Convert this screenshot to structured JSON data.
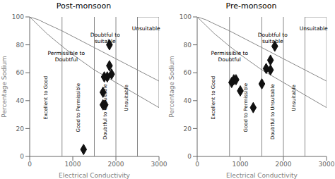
{
  "chart_data": [
    {
      "type": "scatter",
      "title": "Post-monsoon",
      "x_label": "Electrical Conductivity",
      "y_label": "Percentage Sodium",
      "xlim": [
        0,
        3000
      ],
      "ylim": [
        0,
        100
      ],
      "xticks": [
        0,
        1000,
        2000,
        3000
      ],
      "yticks": [
        0,
        20,
        40,
        60,
        80,
        100
      ],
      "grid": false,
      "color": "#111111",
      "marker": "diamond",
      "points": [
        [
          1250,
          5
        ],
        [
          1700,
          37
        ],
        [
          1750,
          37
        ],
        [
          1700,
          46
        ],
        [
          1730,
          57
        ],
        [
          1800,
          57
        ],
        [
          1850,
          65
        ],
        [
          1900,
          59
        ],
        [
          1850,
          80
        ]
      ],
      "lines": [
        {
          "color": "#888888",
          "x": [
            750,
            750
          ],
          "y": [
            0,
            100
          ]
        },
        {
          "color": "#888888",
          "x": [
            1500,
            1500
          ],
          "y": [
            0,
            100
          ]
        },
        {
          "color": "#888888",
          "x": [
            2000,
            2000
          ],
          "y": [
            0,
            100
          ]
        },
        {
          "color": "#888888",
          "x": [
            2500,
            2500
          ],
          "y": [
            0,
            100
          ]
        },
        {
          "color": "#888888",
          "x": [
            0,
            100,
            200,
            400,
            750,
            1000,
            1500,
            2000,
            2500,
            3000
          ],
          "y": [
            100,
            97,
            94,
            88,
            79,
            73,
            62,
            53,
            44,
            35
          ]
        },
        {
          "color": "#888888",
          "x": [
            0,
            100,
            200,
            400,
            750,
            1000,
            1500,
            2000,
            2500,
            3000
          ],
          "y": [
            100,
            99,
            98,
            95,
            90,
            86,
            78,
            70,
            62,
            54
          ]
        },
        {
          "color": "#888888",
          "x": [
            2500,
            3000
          ],
          "y": [
            100,
            100
          ]
        },
        {
          "color": "#888888",
          "x": [
            2500,
            2500
          ],
          "y": [
            44,
            100
          ]
        },
        {
          "color": "#888888",
          "x": [
            3000,
            3000
          ],
          "y": [
            35,
            100
          ]
        }
      ],
      "annotations": [
        {
          "text": "Unsuitable",
          "x": 2700,
          "y": 92
        },
        {
          "text": "Doubtful to\nsuitable",
          "x": 1750,
          "y": 85
        },
        {
          "text": "Permissible to\nDoubtful",
          "x": 850,
          "y": 72
        }
      ],
      "rotated_annotations": [
        {
          "text": "Excellent to Good",
          "x": 375,
          "y": 42
        },
        {
          "text": "Good to Permissible",
          "x": 1130,
          "y": 35
        },
        {
          "text": "Doubtful to Unsuitable",
          "x": 1750,
          "y": 32
        },
        {
          "text": "Unsuitable",
          "x": 2250,
          "y": 42
        }
      ]
    },
    {
      "type": "scatter",
      "title": "Pre-monsoon",
      "x_label": "Electrical Conductivity",
      "y_label": "Percentage Sodium",
      "xlim": [
        0,
        3000
      ],
      "ylim": [
        0,
        100
      ],
      "xticks": [
        0,
        1000,
        2000,
        3000
      ],
      "yticks": [
        0,
        20,
        40,
        60,
        80,
        100
      ],
      "grid": false,
      "color": "#111111",
      "marker": "diamond",
      "points": [
        [
          800,
          53
        ],
        [
          850,
          55
        ],
        [
          900,
          55
        ],
        [
          1000,
          47
        ],
        [
          1300,
          35
        ],
        [
          1500,
          52
        ],
        [
          1600,
          63
        ],
        [
          1700,
          62
        ],
        [
          1700,
          69
        ],
        [
          1800,
          79
        ]
      ],
      "lines": [
        {
          "color": "#888888",
          "x": [
            750,
            750
          ],
          "y": [
            0,
            100
          ]
        },
        {
          "color": "#888888",
          "x": [
            1500,
            1500
          ],
          "y": [
            0,
            100
          ]
        },
        {
          "color": "#888888",
          "x": [
            2000,
            2000
          ],
          "y": [
            0,
            100
          ]
        },
        {
          "color": "#888888",
          "x": [
            2500,
            2500
          ],
          "y": [
            0,
            100
          ]
        },
        {
          "color": "#888888",
          "x": [
            0,
            100,
            200,
            400,
            750,
            1000,
            1500,
            2000,
            2500,
            3000
          ],
          "y": [
            100,
            97,
            94,
            88,
            79,
            73,
            62,
            53,
            44,
            35
          ]
        },
        {
          "color": "#888888",
          "x": [
            0,
            100,
            200,
            400,
            750,
            1000,
            1500,
            2000,
            2500,
            3000
          ],
          "y": [
            100,
            99,
            98,
            95,
            90,
            86,
            78,
            70,
            62,
            54
          ]
        },
        {
          "color": "#888888",
          "x": [
            2500,
            3000
          ],
          "y": [
            100,
            100
          ]
        },
        {
          "color": "#888888",
          "x": [
            2500,
            2500
          ],
          "y": [
            44,
            100
          ]
        },
        {
          "color": "#888888",
          "x": [
            3000,
            3000
          ],
          "y": [
            35,
            100
          ]
        }
      ],
      "annotations": [
        {
          "text": "Unsuitable",
          "x": 2700,
          "y": 92
        },
        {
          "text": "Doubtful to\nsuitable",
          "x": 1750,
          "y": 85
        },
        {
          "text": "Permissible to\nDoubtful",
          "x": 750,
          "y": 72
        }
      ],
      "rotated_annotations": [
        {
          "text": "Excellent to Good",
          "x": 375,
          "y": 42
        },
        {
          "text": "Good to Permissible",
          "x": 1130,
          "y": 35
        },
        {
          "text": "Doubtful to Unsuitable",
          "x": 1750,
          "y": 32
        },
        {
          "text": "Unsuitable",
          "x": 2250,
          "y": 42
        }
      ]
    }
  ]
}
